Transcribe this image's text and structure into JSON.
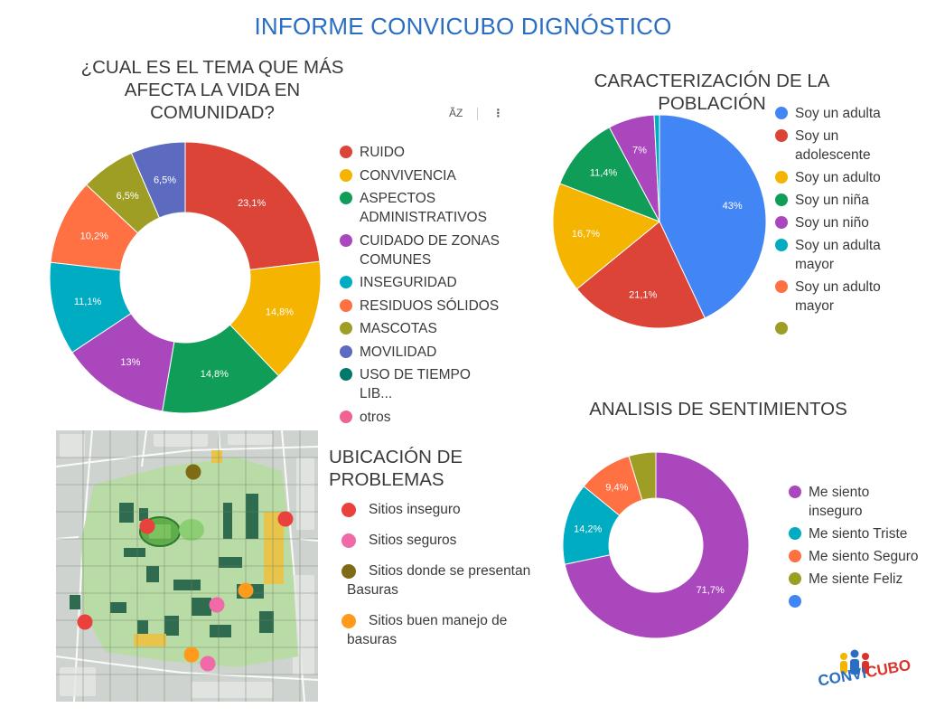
{
  "header": {
    "title": "INFORME CONVICUBO DIGNÓSTICO"
  },
  "toolbar": {
    "sort_icon_text": "A͂Z",
    "more_icon_text": "⋮"
  },
  "sections": {
    "ubicacion_title": "UBICACIÓN DE PROBLEMAS"
  },
  "ubicacion_legend": [
    {
      "label": "Sitios inseguro",
      "color": "#e9423d"
    },
    {
      "label": "Sitios seguros",
      "color": "#ef6aa6"
    },
    {
      "label": "Sitios donde se presentan Basuras",
      "color": "#7f6b15"
    },
    {
      "label": "Sitios buen manejo de basuras",
      "color": "#ff9a1d"
    }
  ],
  "map_markers": [
    {
      "kind": "inseguro",
      "color": "#e9423d"
    },
    {
      "kind": "inseguro",
      "color": "#e9423d"
    },
    {
      "kind": "inseguro",
      "color": "#e9423d"
    },
    {
      "kind": "seguro",
      "color": "#ef6aa6"
    },
    {
      "kind": "seguro",
      "color": "#ef6aa6"
    },
    {
      "kind": "basuras",
      "color": "#7f6b15"
    },
    {
      "kind": "buen_manejo",
      "color": "#ff9a1d"
    },
    {
      "kind": "buen_manejo",
      "color": "#ff9a1d"
    }
  ],
  "logo": {
    "text_1": "CONVI",
    "text_2": "CUBO",
    "color_1": "#2a6ec3",
    "color_2": "#d9342b"
  },
  "chart_data": [
    {
      "id": "tema",
      "type": "pie",
      "donut": true,
      "title": "¿CUAL ES EL TEMA QUE MÁS AFECTA  LA VIDA EN COMUNIDAD?",
      "legend": "right",
      "categories": [
        "RUIDO",
        "CONVIVENCIA",
        "ASPECTOS ADMINISTRATIVOS",
        "CUIDADO DE ZONAS COMUNES",
        "INSEGURIDAD",
        "RESIDUOS SÓLIDOS",
        "MASCOTAS",
        "MOVILIDAD",
        "USO DE TIEMPO LIB...",
        "otros"
      ],
      "values": [
        23.1,
        14.8,
        14.8,
        13.0,
        11.1,
        10.2,
        6.5,
        6.5,
        0,
        0
      ],
      "labels": [
        "23,1%",
        "14,8%",
        "14,8%",
        "13%",
        "11,1%",
        "10,2%",
        "6,5%",
        "6,5%",
        "",
        ""
      ],
      "colors": [
        "#db4437",
        "#f4b400",
        "#0f9d58",
        "#ab47bc",
        "#00acc1",
        "#ff7043",
        "#9e9d24",
        "#5c6bc0",
        "#00796b",
        "#f06292"
      ]
    },
    {
      "id": "poblacion",
      "type": "pie",
      "donut": false,
      "title": "CARACTERIZACIÓN DE LA POBLACIÓN",
      "legend": "right",
      "categories": [
        "Soy un adulta",
        "Soy un adolescente",
        "Soy un adulto",
        "Soy un niña",
        "Soy un niño",
        "Soy un adulta mayor",
        "Soy un adulto mayor",
        ""
      ],
      "values": [
        43.0,
        21.1,
        16.7,
        11.4,
        7.0,
        0.8,
        0,
        0
      ],
      "labels": [
        "43%",
        "21,1%",
        "16,7%",
        "11,4%",
        "7%",
        "",
        "",
        ""
      ],
      "colors": [
        "#4285f4",
        "#db4437",
        "#f4b400",
        "#0f9d58",
        "#ab47bc",
        "#00acc1",
        "#ff7043",
        "#9e9d24"
      ]
    },
    {
      "id": "sentimientos",
      "type": "pie",
      "donut": true,
      "title": "ANALISIS DE SENTIMIENTOS",
      "legend": "right",
      "categories": [
        "Me siento inseguro",
        "Me siento Triste",
        "Me siento Seguro",
        "Me siente Feliz",
        ""
      ],
      "values": [
        71.7,
        14.2,
        9.4,
        4.7,
        0
      ],
      "labels": [
        "71,7%",
        "14,2%",
        "9,4%",
        "",
        ""
      ],
      "colors": [
        "#ab47bc",
        "#00acc1",
        "#ff7043",
        "#9e9d24",
        "#4285f4"
      ]
    }
  ]
}
